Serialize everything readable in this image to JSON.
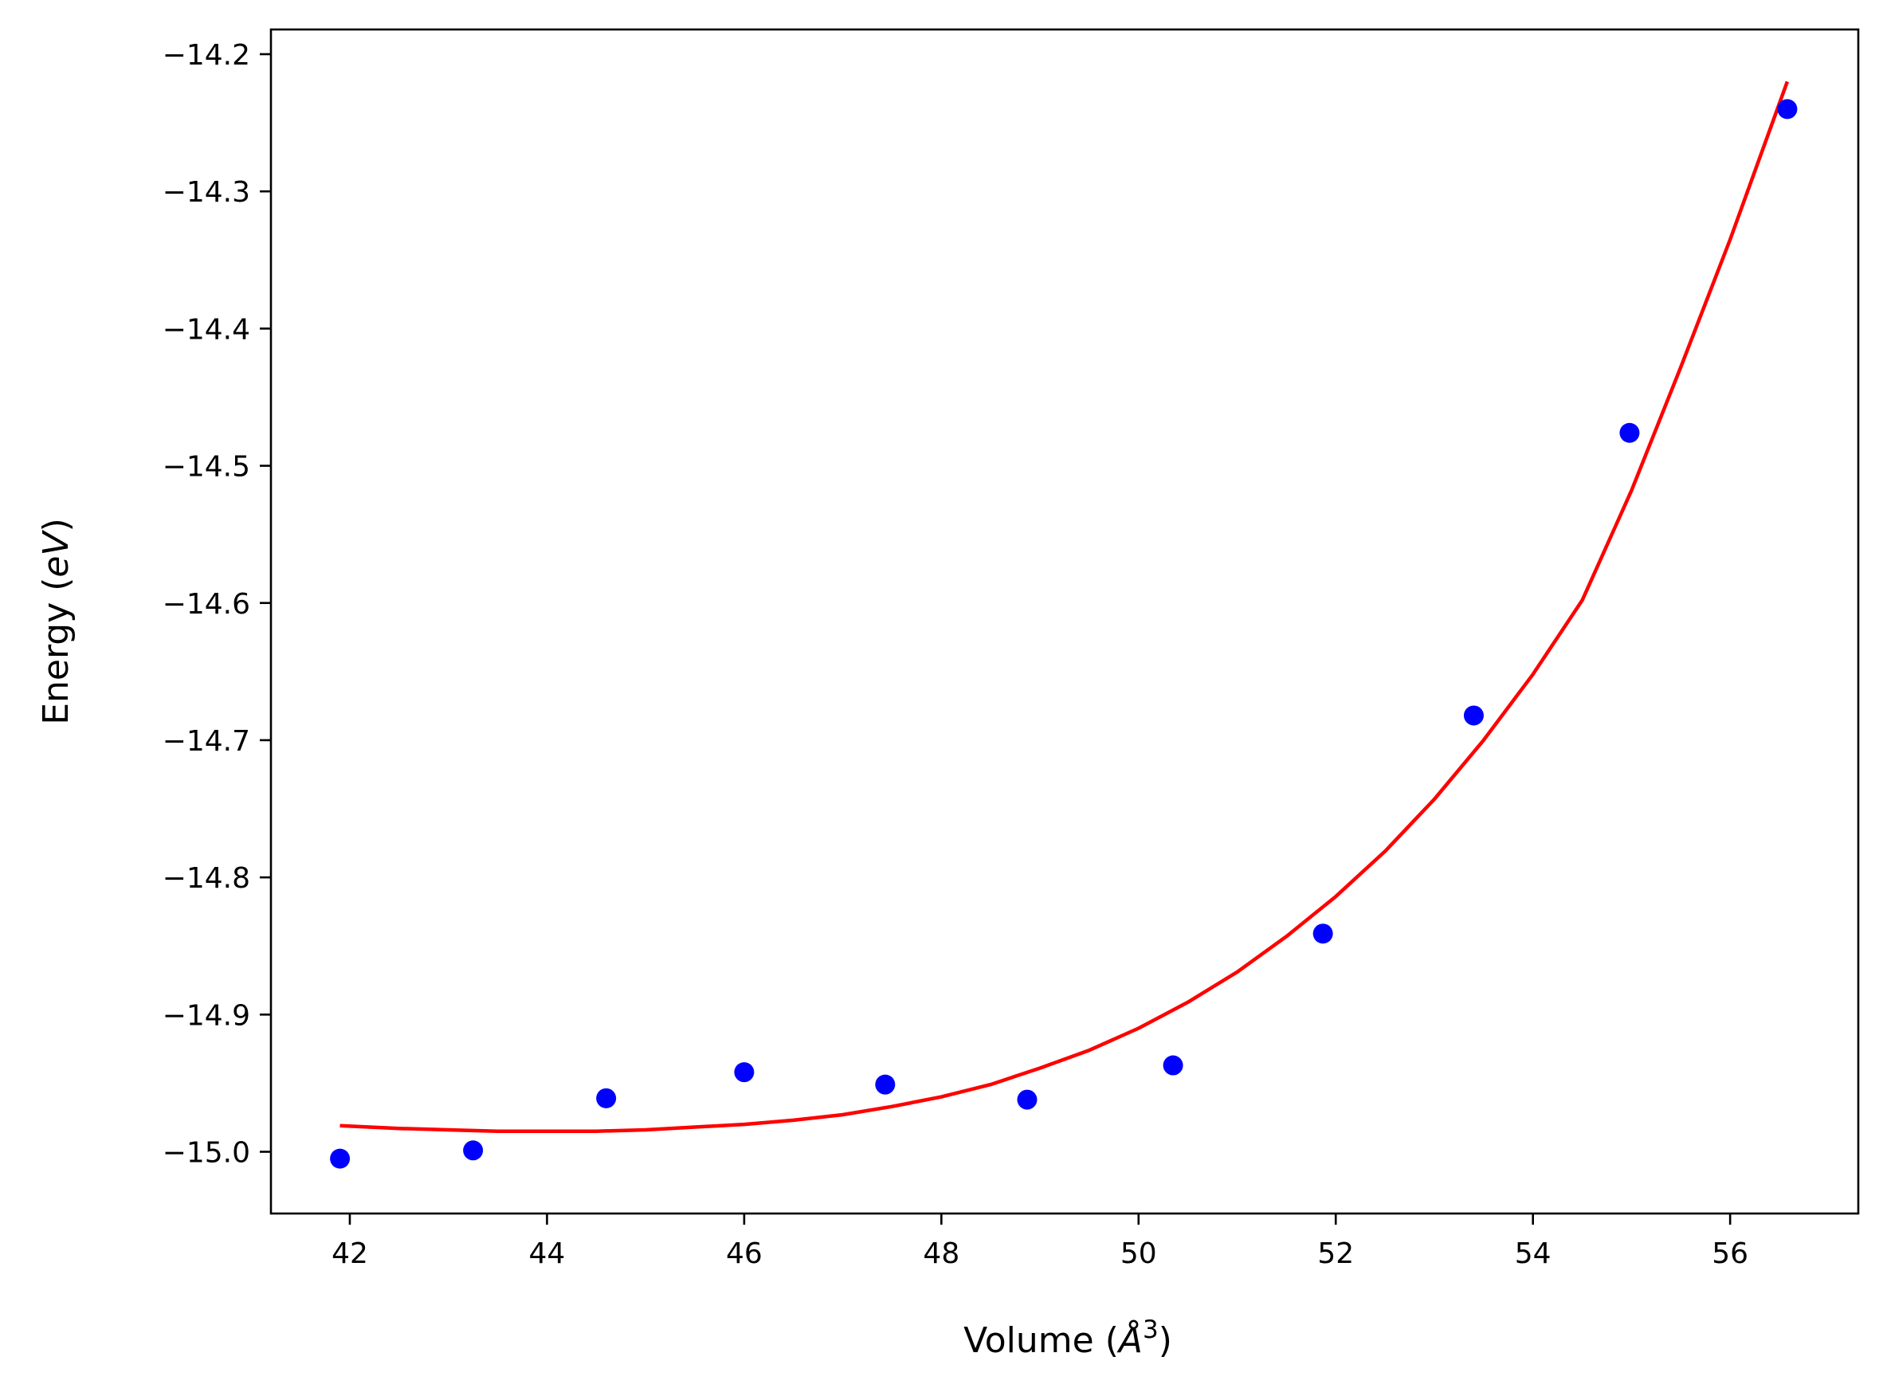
{
  "chart_data": {
    "type": "scatter",
    "title": "",
    "xlabel": "Volume (",
    "xlabel_symbol": "Å",
    "xlabel_sup": "3",
    "xlabel_close": ")",
    "ylabel": "Energy (",
    "ylabel_unit": "eV",
    "ylabel_close": ")",
    "xlim": [
      41.2,
      57.3
    ],
    "ylim": [
      -15.045,
      -14.182
    ],
    "xticks": [
      42,
      44,
      46,
      48,
      50,
      52,
      54,
      56
    ],
    "xtick_labels": [
      "42",
      "44",
      "46",
      "48",
      "50",
      "52",
      "54",
      "56"
    ],
    "yticks": [
      -15.0,
      -14.9,
      -14.8,
      -14.7,
      -14.6,
      -14.5,
      -14.4,
      -14.3,
      -14.2
    ],
    "ytick_labels": [
      "−15.0",
      "−14.9",
      "−14.8",
      "−14.7",
      "−14.6",
      "−14.5",
      "−14.4",
      "−14.3",
      "−14.2"
    ],
    "grid": false,
    "series": [
      {
        "kind": "scatter",
        "color": "#0000ff",
        "x": [
          41.9,
          43.25,
          44.6,
          46.0,
          47.43,
          48.87,
          50.35,
          51.87,
          53.4,
          54.98,
          56.58
        ],
        "y": [
          -15.005,
          -14.999,
          -14.961,
          -14.942,
          -14.951,
          -14.962,
          -14.937,
          -14.841,
          -14.682,
          -14.476,
          -14.24
        ]
      },
      {
        "kind": "line",
        "color": "#ff0000",
        "x": [
          41.9,
          42.5,
          43.0,
          43.5,
          44.0,
          44.5,
          45.0,
          45.5,
          46.0,
          46.5,
          47.0,
          47.5,
          48.0,
          48.5,
          49.0,
          49.5,
          50.0,
          50.5,
          51.0,
          51.5,
          52.0,
          52.5,
          53.0,
          53.5,
          54.0,
          54.5,
          55.0,
          55.5,
          56.0,
          56.58
        ],
        "y": [
          -14.981,
          -14.983,
          -14.984,
          -14.985,
          -14.985,
          -14.985,
          -14.984,
          -14.982,
          -14.98,
          -14.977,
          -14.973,
          -14.967,
          -14.96,
          -14.951,
          -14.939,
          -14.926,
          -14.91,
          -14.891,
          -14.869,
          -14.843,
          -14.814,
          -14.781,
          -14.743,
          -14.7,
          -14.652,
          -14.598,
          -14.518,
          -14.428,
          -14.335,
          -14.22
        ]
      }
    ]
  }
}
